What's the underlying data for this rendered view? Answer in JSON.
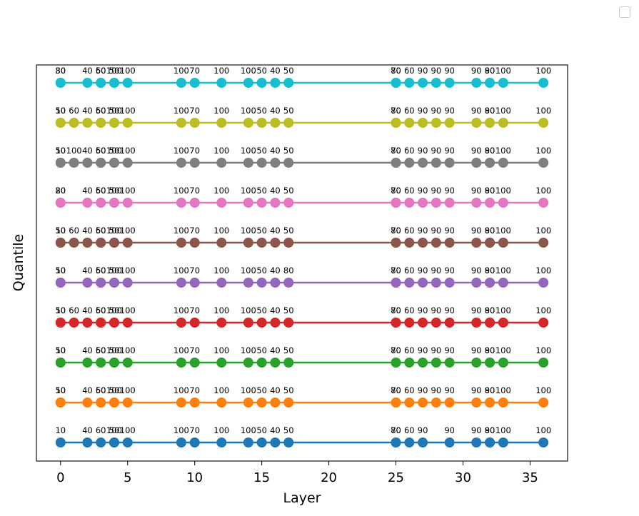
{
  "chart_data": {
    "type": "line",
    "title": "",
    "xlabel": "Layer",
    "ylabel": "Quantile",
    "xlim": [
      -1.8,
      37.8
    ],
    "xticks": [
      0,
      5,
      10,
      15,
      20,
      25,
      30,
      35
    ],
    "yticks_visible": false,
    "grid": false,
    "legend": "top-right",
    "series": [
      {
        "color": "#1f77b4",
        "points": [
          [
            0,
            "10"
          ],
          [
            2,
            "40"
          ],
          [
            3,
            "60"
          ],
          [
            4,
            "50"
          ],
          [
            4,
            "100"
          ],
          [
            5,
            "100"
          ],
          [
            9,
            "100"
          ],
          [
            10,
            "70"
          ],
          [
            12,
            "100"
          ],
          [
            14,
            "100"
          ],
          [
            15,
            "50"
          ],
          [
            16,
            "40"
          ],
          [
            17,
            "50"
          ],
          [
            25,
            "70"
          ],
          [
            25,
            "80"
          ],
          [
            26,
            "60"
          ],
          [
            27,
            "90"
          ],
          [
            29,
            "90"
          ],
          [
            31,
            "90"
          ],
          [
            32,
            "90"
          ],
          [
            32,
            "80"
          ],
          [
            33,
            "100"
          ],
          [
            36,
            "100"
          ]
        ]
      },
      {
        "color": "#ff7f0e",
        "points": [
          [
            0,
            "10"
          ],
          [
            0,
            "50"
          ],
          [
            2,
            "40"
          ],
          [
            3,
            "50"
          ],
          [
            3,
            "60"
          ],
          [
            4,
            "50"
          ],
          [
            4,
            "100"
          ],
          [
            5,
            "100"
          ],
          [
            9,
            "100"
          ],
          [
            10,
            "70"
          ],
          [
            12,
            "100"
          ],
          [
            14,
            "100"
          ],
          [
            15,
            "50"
          ],
          [
            16,
            "40"
          ],
          [
            17,
            "50"
          ],
          [
            25,
            "70"
          ],
          [
            25,
            "80"
          ],
          [
            26,
            "60"
          ],
          [
            27,
            "90"
          ],
          [
            28,
            "90"
          ],
          [
            29,
            "90"
          ],
          [
            31,
            "90"
          ],
          [
            32,
            "90"
          ],
          [
            32,
            "80"
          ],
          [
            33,
            "100"
          ],
          [
            36,
            "100"
          ]
        ]
      },
      {
        "color": "#2ca02c",
        "points": [
          [
            0,
            "10"
          ],
          [
            0,
            "50"
          ],
          [
            2,
            "40"
          ],
          [
            3,
            "50"
          ],
          [
            3,
            "60"
          ],
          [
            4,
            "50"
          ],
          [
            4,
            "100"
          ],
          [
            5,
            "100"
          ],
          [
            9,
            "100"
          ],
          [
            10,
            "70"
          ],
          [
            12,
            "100"
          ],
          [
            14,
            "100"
          ],
          [
            15,
            "50"
          ],
          [
            16,
            "40"
          ],
          [
            17,
            "50"
          ],
          [
            25,
            "70"
          ],
          [
            25,
            "80"
          ],
          [
            26,
            "60"
          ],
          [
            27,
            "90"
          ],
          [
            28,
            "90"
          ],
          [
            29,
            "90"
          ],
          [
            31,
            "90"
          ],
          [
            32,
            "90"
          ],
          [
            32,
            "80"
          ],
          [
            33,
            "100"
          ],
          [
            36,
            "100"
          ]
        ]
      },
      {
        "color": "#d62728",
        "points": [
          [
            0,
            "10"
          ],
          [
            0,
            "50"
          ],
          [
            1,
            "60"
          ],
          [
            2,
            "40"
          ],
          [
            3,
            "50"
          ],
          [
            3,
            "60"
          ],
          [
            4,
            "50"
          ],
          [
            4,
            "100"
          ],
          [
            5,
            "100"
          ],
          [
            9,
            "100"
          ],
          [
            10,
            "70"
          ],
          [
            12,
            "100"
          ],
          [
            14,
            "100"
          ],
          [
            15,
            "50"
          ],
          [
            16,
            "40"
          ],
          [
            17,
            "50"
          ],
          [
            25,
            "70"
          ],
          [
            25,
            "80"
          ],
          [
            26,
            "60"
          ],
          [
            27,
            "90"
          ],
          [
            28,
            "90"
          ],
          [
            29,
            "90"
          ],
          [
            31,
            "90"
          ],
          [
            32,
            "90"
          ],
          [
            32,
            "80"
          ],
          [
            33,
            "100"
          ],
          [
            36,
            "100"
          ]
        ]
      },
      {
        "color": "#9467bd",
        "points": [
          [
            0,
            "10"
          ],
          [
            0,
            "50"
          ],
          [
            2,
            "40"
          ],
          [
            3,
            "50"
          ],
          [
            3,
            "60"
          ],
          [
            4,
            "50"
          ],
          [
            4,
            "100"
          ],
          [
            5,
            "100"
          ],
          [
            9,
            "100"
          ],
          [
            10,
            "70"
          ],
          [
            12,
            "100"
          ],
          [
            14,
            "100"
          ],
          [
            15,
            "50"
          ],
          [
            16,
            "40"
          ],
          [
            17,
            "80"
          ],
          [
            25,
            "70"
          ],
          [
            25,
            "80"
          ],
          [
            26,
            "60"
          ],
          [
            27,
            "90"
          ],
          [
            28,
            "90"
          ],
          [
            29,
            "90"
          ],
          [
            31,
            "90"
          ],
          [
            32,
            "90"
          ],
          [
            32,
            "80"
          ],
          [
            33,
            "100"
          ],
          [
            36,
            "100"
          ]
        ]
      },
      {
        "color": "#8c564b",
        "points": [
          [
            0,
            "10"
          ],
          [
            0,
            "50"
          ],
          [
            1,
            "60"
          ],
          [
            2,
            "40"
          ],
          [
            3,
            "50"
          ],
          [
            3,
            "60"
          ],
          [
            4,
            "50"
          ],
          [
            4,
            "100"
          ],
          [
            5,
            "100"
          ],
          [
            9,
            "100"
          ],
          [
            10,
            "70"
          ],
          [
            12,
            "100"
          ],
          [
            14,
            "100"
          ],
          [
            15,
            "50"
          ],
          [
            16,
            "40"
          ],
          [
            17,
            "50"
          ],
          [
            25,
            "70"
          ],
          [
            25,
            "80"
          ],
          [
            26,
            "60"
          ],
          [
            27,
            "90"
          ],
          [
            28,
            "90"
          ],
          [
            29,
            "90"
          ],
          [
            31,
            "90"
          ],
          [
            32,
            "90"
          ],
          [
            32,
            "80"
          ],
          [
            33,
            "100"
          ],
          [
            36,
            "100"
          ]
        ]
      },
      {
        "color": "#e377c2",
        "points": [
          [
            0,
            "20"
          ],
          [
            0,
            "80"
          ],
          [
            2,
            "40"
          ],
          [
            3,
            "50"
          ],
          [
            3,
            "60"
          ],
          [
            4,
            "50"
          ],
          [
            4,
            "100"
          ],
          [
            5,
            "100"
          ],
          [
            9,
            "100"
          ],
          [
            10,
            "70"
          ],
          [
            12,
            "100"
          ],
          [
            14,
            "100"
          ],
          [
            15,
            "50"
          ],
          [
            16,
            "40"
          ],
          [
            17,
            "50"
          ],
          [
            25,
            "70"
          ],
          [
            25,
            "80"
          ],
          [
            26,
            "60"
          ],
          [
            27,
            "90"
          ],
          [
            28,
            "90"
          ],
          [
            29,
            "90"
          ],
          [
            31,
            "90"
          ],
          [
            32,
            "90"
          ],
          [
            32,
            "80"
          ],
          [
            33,
            "100"
          ],
          [
            36,
            "100"
          ]
        ]
      },
      {
        "color": "#7f7f7f",
        "points": [
          [
            0,
            "10"
          ],
          [
            0,
            "50"
          ],
          [
            1,
            "100"
          ],
          [
            2,
            "40"
          ],
          [
            3,
            "50"
          ],
          [
            3,
            "60"
          ],
          [
            4,
            "50"
          ],
          [
            4,
            "100"
          ],
          [
            5,
            "100"
          ],
          [
            9,
            "100"
          ],
          [
            10,
            "70"
          ],
          [
            12,
            "100"
          ],
          [
            14,
            "100"
          ],
          [
            15,
            "50"
          ],
          [
            16,
            "40"
          ],
          [
            17,
            "50"
          ],
          [
            25,
            "70"
          ],
          [
            25,
            "80"
          ],
          [
            26,
            "60"
          ],
          [
            27,
            "90"
          ],
          [
            28,
            "90"
          ],
          [
            29,
            "90"
          ],
          [
            31,
            "90"
          ],
          [
            32,
            "90"
          ],
          [
            32,
            "80"
          ],
          [
            33,
            "100"
          ],
          [
            36,
            "100"
          ]
        ]
      },
      {
        "color": "#bcbd22",
        "points": [
          [
            0,
            "10"
          ],
          [
            0,
            "50"
          ],
          [
            1,
            "60"
          ],
          [
            2,
            "40"
          ],
          [
            3,
            "50"
          ],
          [
            3,
            "60"
          ],
          [
            4,
            "50"
          ],
          [
            4,
            "100"
          ],
          [
            5,
            "100"
          ],
          [
            9,
            "100"
          ],
          [
            10,
            "70"
          ],
          [
            12,
            "100"
          ],
          [
            14,
            "100"
          ],
          [
            15,
            "50"
          ],
          [
            16,
            "40"
          ],
          [
            17,
            "50"
          ],
          [
            25,
            "70"
          ],
          [
            25,
            "80"
          ],
          [
            26,
            "60"
          ],
          [
            27,
            "90"
          ],
          [
            28,
            "90"
          ],
          [
            29,
            "90"
          ],
          [
            31,
            "90"
          ],
          [
            32,
            "90"
          ],
          [
            32,
            "80"
          ],
          [
            33,
            "100"
          ],
          [
            36,
            "100"
          ]
        ]
      },
      {
        "color": "#17becf",
        "points": [
          [
            0,
            "30"
          ],
          [
            0,
            "80"
          ],
          [
            2,
            "40"
          ],
          [
            3,
            "50"
          ],
          [
            3,
            "60"
          ],
          [
            4,
            "50"
          ],
          [
            4,
            "100"
          ],
          [
            5,
            "100"
          ],
          [
            9,
            "100"
          ],
          [
            10,
            "70"
          ],
          [
            12,
            "100"
          ],
          [
            14,
            "100"
          ],
          [
            15,
            "50"
          ],
          [
            16,
            "40"
          ],
          [
            17,
            "50"
          ],
          [
            25,
            "70"
          ],
          [
            25,
            "80"
          ],
          [
            26,
            "60"
          ],
          [
            27,
            "90"
          ],
          [
            28,
            "90"
          ],
          [
            29,
            "90"
          ],
          [
            31,
            "90"
          ],
          [
            32,
            "90"
          ],
          [
            32,
            "80"
          ],
          [
            33,
            "100"
          ],
          [
            36,
            "100"
          ]
        ]
      }
    ]
  }
}
